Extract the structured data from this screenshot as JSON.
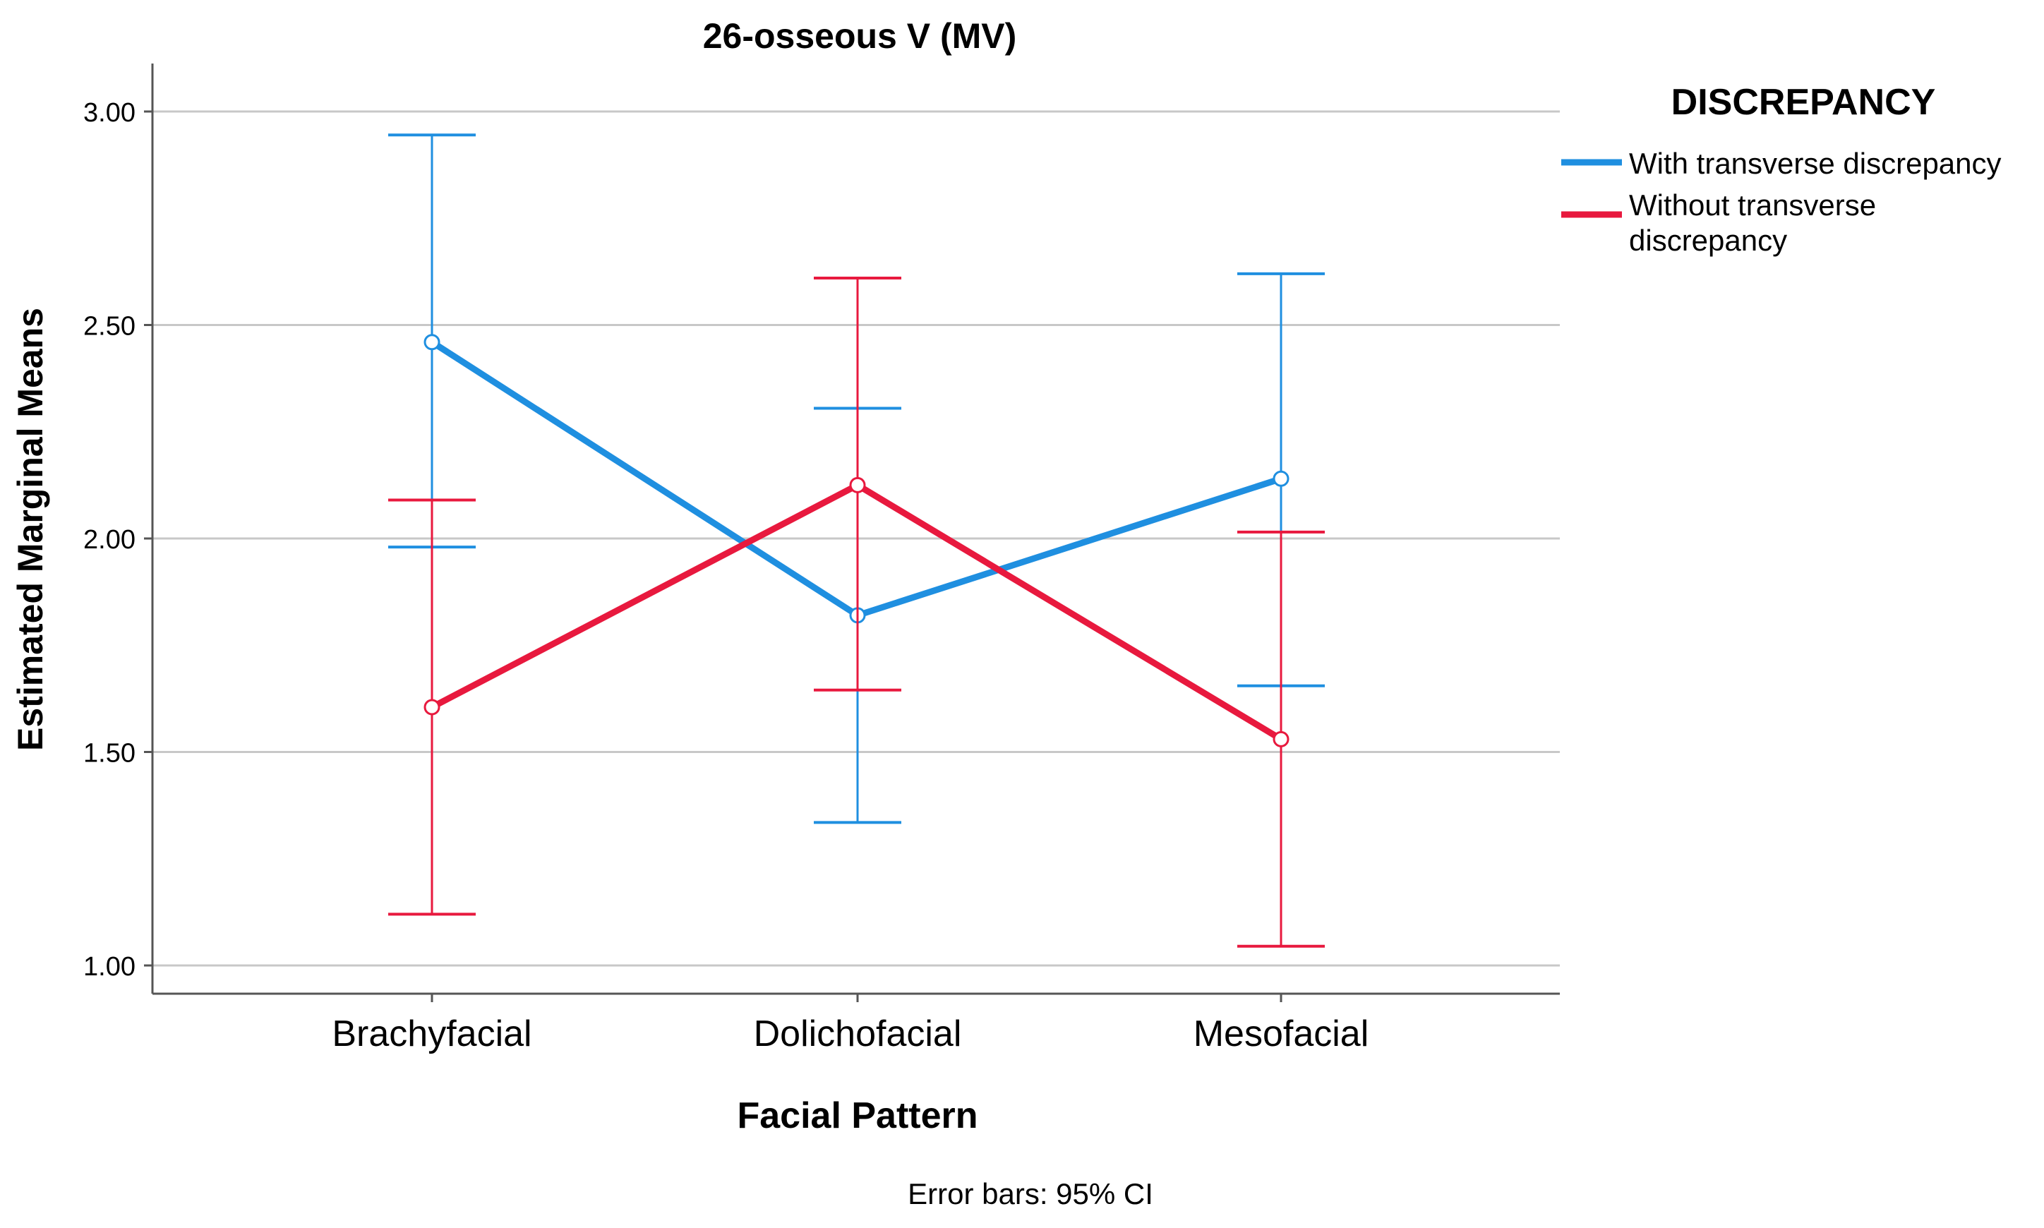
{
  "chart_data": {
    "type": "line",
    "title": "26-osseous V (MV)",
    "xlabel": "Facial Pattern",
    "ylabel": "Estimated Marginal Means",
    "categories": [
      "Brachyfacial",
      "Dolichofacial",
      "Mesofacial"
    ],
    "yticks": [
      "1.00",
      "1.50",
      "2.00",
      "2.50",
      "3.00"
    ],
    "ylim": [
      0.93,
      3.11
    ],
    "grid": "horizontal",
    "legend": {
      "title": "DISCREPANCY",
      "placement": "top-right",
      "line1": "Without transverse",
      "line2": "discrepancy"
    },
    "series": [
      {
        "name": "With transverse discrepancy",
        "color": "#1f8fe0",
        "values": [
          2.46,
          1.82,
          2.14
        ],
        "ci_low": [
          1.98,
          1.335,
          1.655
        ],
        "ci_high": [
          2.945,
          2.305,
          2.62
        ]
      },
      {
        "name": "Without transverse discrepancy",
        "color": "#e8193e",
        "values": [
          1.605,
          2.125,
          1.53
        ],
        "ci_low": [
          1.12,
          1.645,
          1.045
        ],
        "ci_high": [
          2.09,
          2.61,
          2.015
        ]
      }
    ],
    "note": "Error bars: 95% CI"
  }
}
